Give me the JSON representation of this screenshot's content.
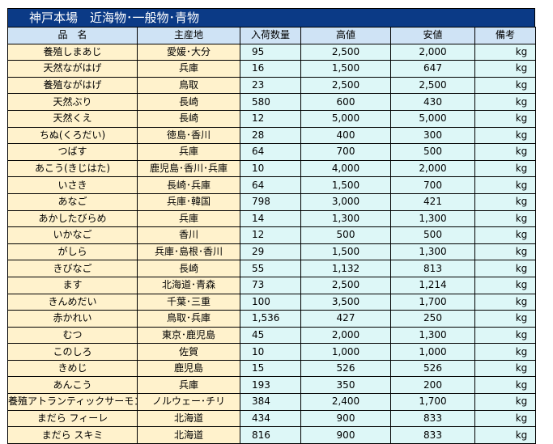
{
  "title": "神戸本場　近海物･一般物･青物",
  "columns": {
    "name": "品　名",
    "origin": "主産地",
    "quantity": "入荷数量",
    "high": "高値",
    "low": "安値",
    "note": "備考"
  },
  "rows": [
    {
      "name": "養殖しまあじ",
      "origin": "愛媛･大分",
      "quantity": "95",
      "high": "2,500",
      "low": "2,000",
      "unit": "kg"
    },
    {
      "name": "天然ながはげ",
      "origin": "兵庫",
      "quantity": "16",
      "high": "1,500",
      "low": "647",
      "unit": "kg"
    },
    {
      "name": "養殖ながはげ",
      "origin": "鳥取",
      "quantity": "23",
      "high": "2,500",
      "low": "2,500",
      "unit": "kg"
    },
    {
      "name": "天然ぶり",
      "origin": "長崎",
      "quantity": "580",
      "high": "600",
      "low": "430",
      "unit": "kg"
    },
    {
      "name": "天然くえ",
      "origin": "長崎",
      "quantity": "12",
      "high": "5,000",
      "low": "5,000",
      "unit": "kg"
    },
    {
      "name": "ちぬ(くろだい)",
      "origin": "徳島･香川",
      "quantity": "28",
      "high": "400",
      "low": "300",
      "unit": "kg"
    },
    {
      "name": "つばす",
      "origin": "兵庫",
      "quantity": "64",
      "high": "700",
      "low": "500",
      "unit": "kg"
    },
    {
      "name": "あこう(きじはた)",
      "origin": "鹿児島･香川･兵庫",
      "quantity": "10",
      "high": "4,000",
      "low": "2,000",
      "unit": "kg"
    },
    {
      "name": "いさき",
      "origin": "長崎･兵庫",
      "quantity": "64",
      "high": "1,500",
      "low": "700",
      "unit": "kg"
    },
    {
      "name": "あなご",
      "origin": "兵庫･韓国",
      "quantity": "798",
      "high": "3,000",
      "low": "421",
      "unit": "kg"
    },
    {
      "name": "あかしたびらめ",
      "origin": "兵庫",
      "quantity": "14",
      "high": "1,300",
      "low": "1,300",
      "unit": "kg"
    },
    {
      "name": "いかなご",
      "origin": "香川",
      "quantity": "12",
      "high": "500",
      "low": "500",
      "unit": "kg"
    },
    {
      "name": "がしら",
      "origin": "兵庫･島根･香川",
      "quantity": "29",
      "high": "1,500",
      "low": "1,300",
      "unit": "kg"
    },
    {
      "name": "きびなご",
      "origin": "長崎",
      "quantity": "55",
      "high": "1,132",
      "low": "813",
      "unit": "kg"
    },
    {
      "name": "ます",
      "origin": "北海道･青森",
      "quantity": "73",
      "high": "2,500",
      "low": "1,214",
      "unit": "kg"
    },
    {
      "name": "きんめだい",
      "origin": "千葉･三重",
      "quantity": "100",
      "high": "3,500",
      "low": "1,700",
      "unit": "kg"
    },
    {
      "name": "赤かれい",
      "origin": "鳥取･兵庫",
      "quantity": "1,536",
      "high": "427",
      "low": "250",
      "unit": "kg"
    },
    {
      "name": "むつ",
      "origin": "東京･鹿児島",
      "quantity": "45",
      "high": "2,000",
      "low": "1,300",
      "unit": "kg"
    },
    {
      "name": "このしろ",
      "origin": "佐賀",
      "quantity": "10",
      "high": "1,000",
      "low": "1,000",
      "unit": "kg"
    },
    {
      "name": "きめじ",
      "origin": "鹿児島",
      "quantity": "15",
      "high": "526",
      "low": "526",
      "unit": "kg"
    },
    {
      "name": "あんこう",
      "origin": "兵庫",
      "quantity": "193",
      "high": "350",
      "low": "200",
      "unit": "kg"
    },
    {
      "name": "養殖アトランティックサーモン",
      "origin": "ノルウェー･チリ",
      "quantity": "384",
      "high": "2,400",
      "low": "1,700",
      "unit": "kg"
    },
    {
      "name": "まだら フィーレ",
      "origin": "北海道",
      "quantity": "434",
      "high": "900",
      "low": "833",
      "unit": "kg"
    },
    {
      "name": "まだら スキミ",
      "origin": "北海道",
      "quantity": "816",
      "high": "900",
      "low": "833",
      "unit": "kg"
    }
  ],
  "colors": {
    "title_bg": "#0b3a86",
    "header_bg": "#cfe3f5",
    "name_bg": "#fff2cc",
    "value_bg": "#ddf7f7"
  }
}
